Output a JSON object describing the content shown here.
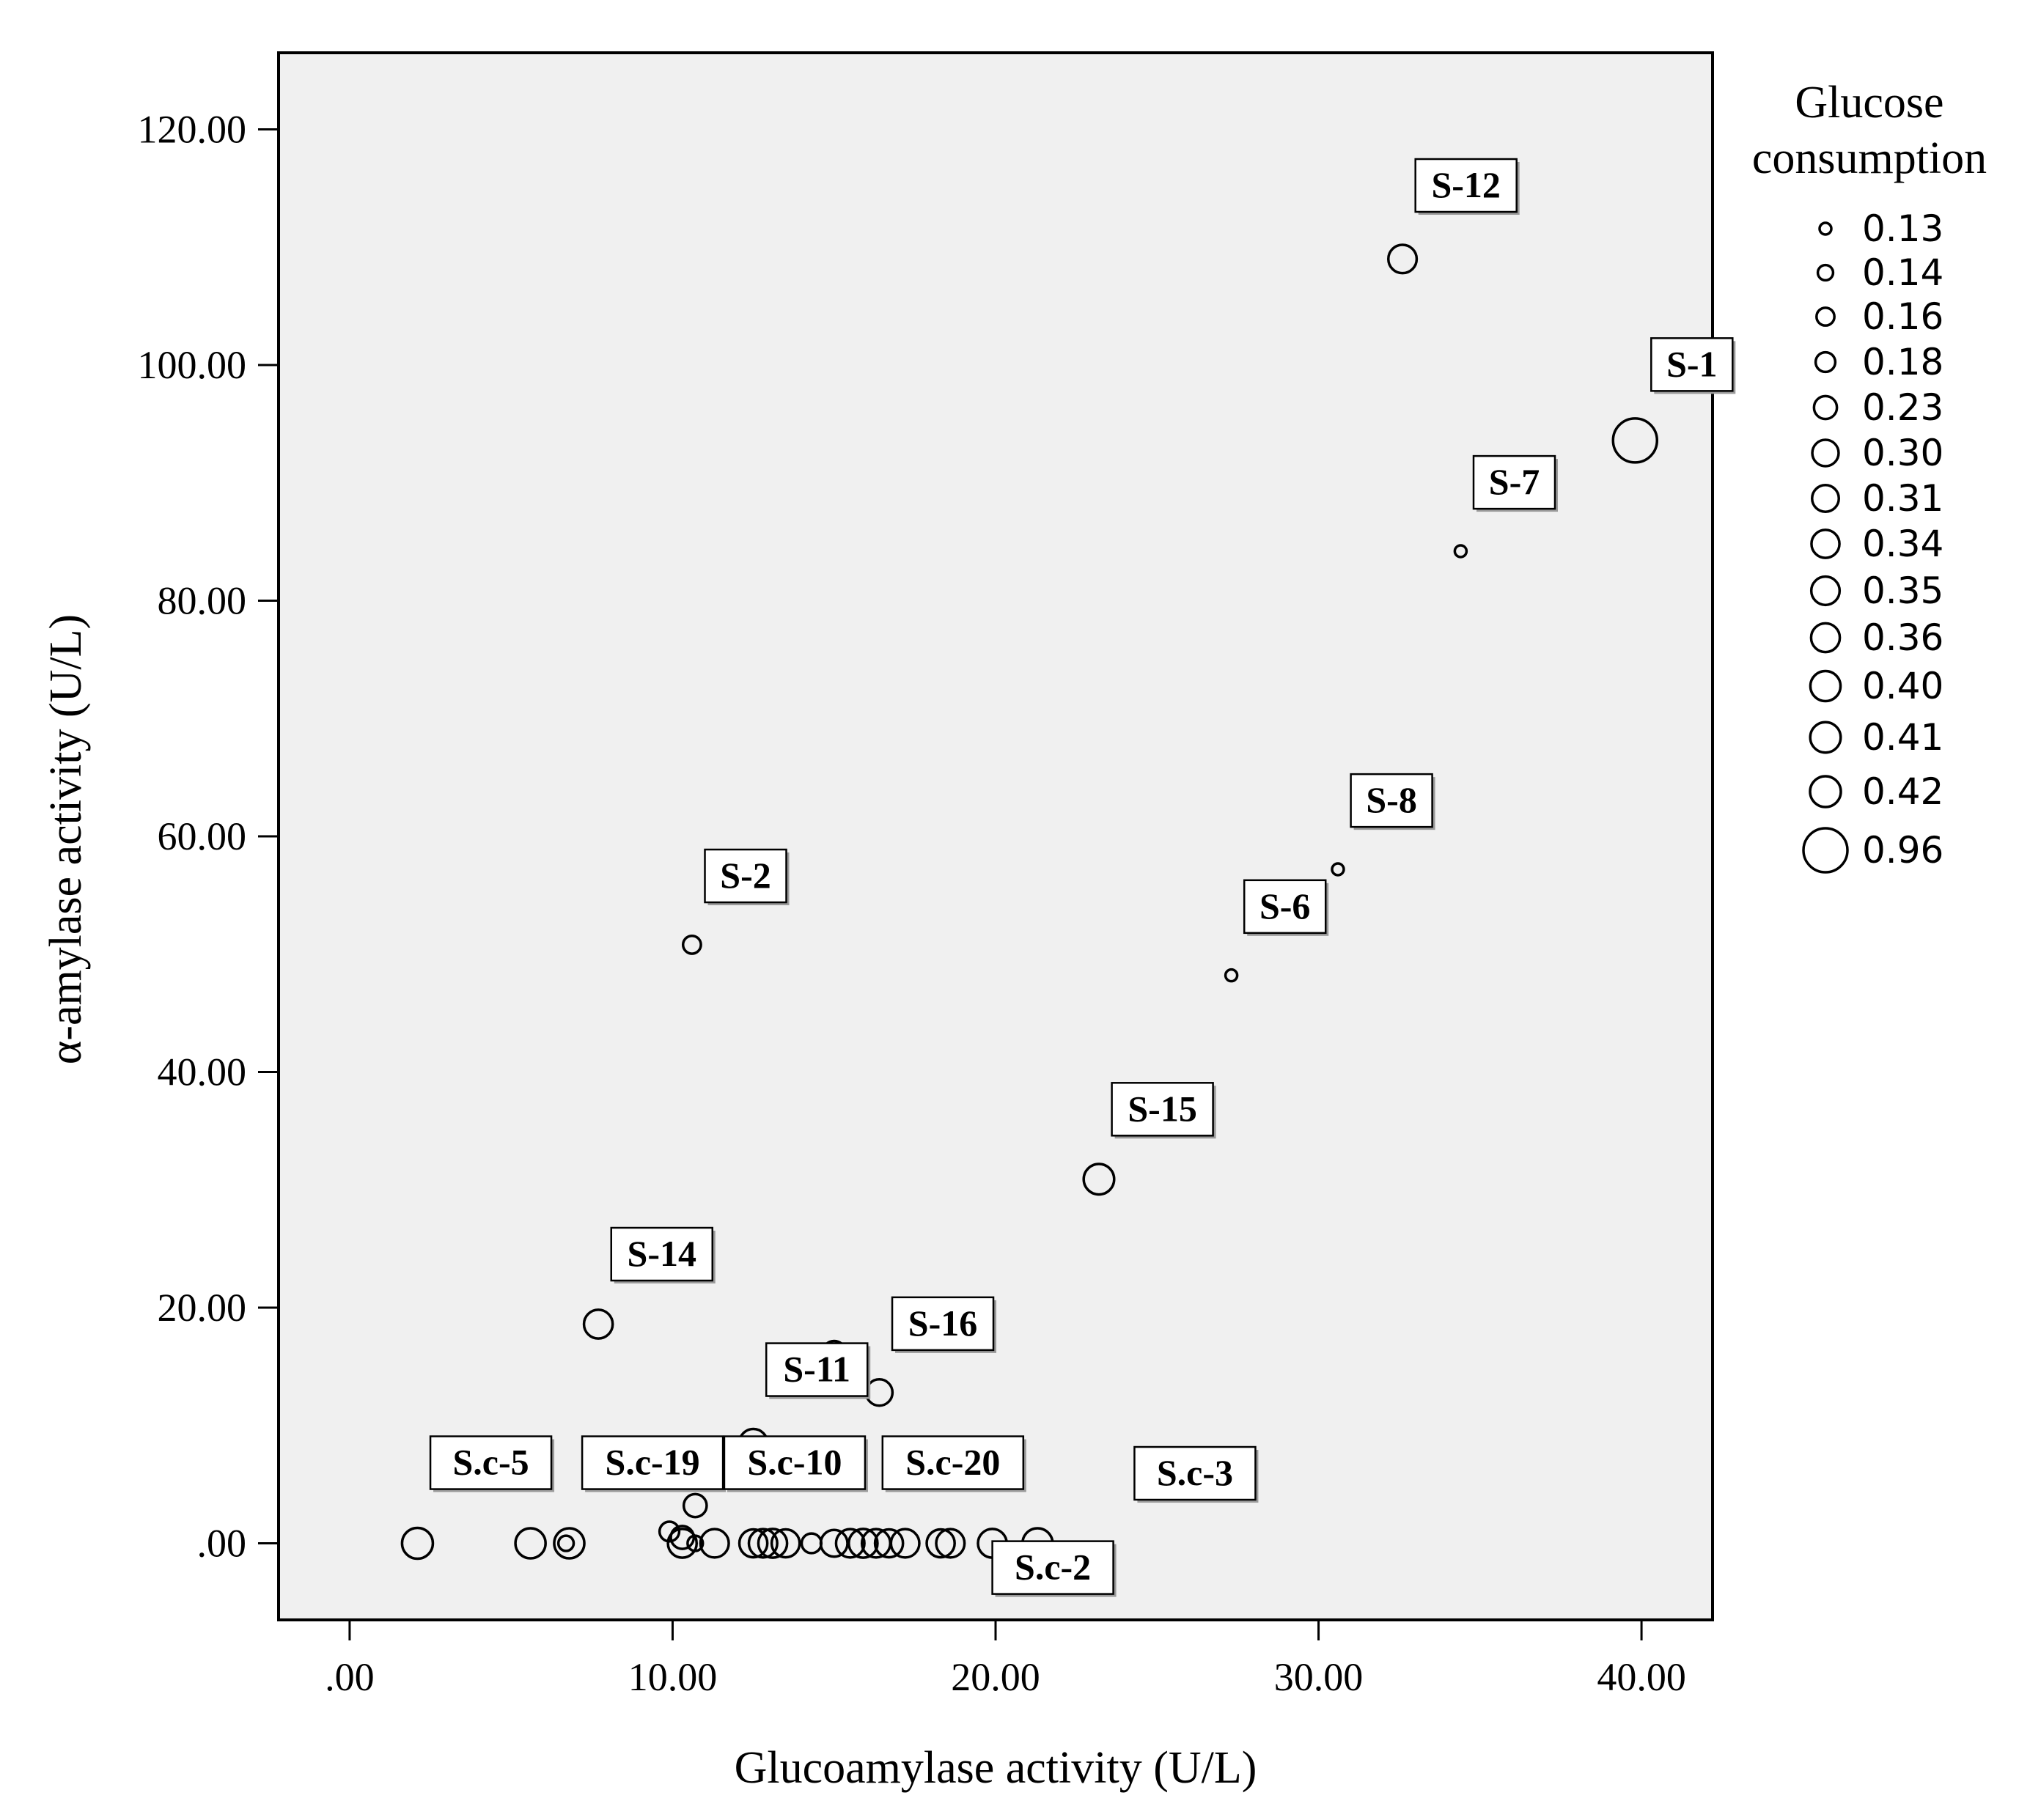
{
  "chart_data": {
    "type": "scatter",
    "title": "",
    "xlabel": "Glucoamylase activity (U/L)",
    "ylabel": "α-amylase activity (U/L)",
    "xlim": [
      -2.2,
      42.2
    ],
    "ylim": [
      -6.5,
      126.5
    ],
    "x_ticks": [
      0,
      10,
      20,
      30,
      40
    ],
    "x_tick_labels": [
      ".00",
      "10.00",
      "20.00",
      "30.00",
      "40.00"
    ],
    "y_ticks": [
      0,
      20,
      40,
      60,
      80,
      100,
      120
    ],
    "y_tick_labels": [
      ".00",
      "20.00",
      "40.00",
      "60.00",
      "80.00",
      "100.00",
      "120.00"
    ],
    "size_variable": "Glucose consumption",
    "legend": {
      "title_lines": [
        "Glucose",
        "consumption"
      ],
      "entries": [
        {
          "label": "0.13",
          "value": 0.13
        },
        {
          "label": "0.14",
          "value": 0.14
        },
        {
          "label": "0.16",
          "value": 0.16
        },
        {
          "label": "0.18",
          "value": 0.18
        },
        {
          "label": "0.23",
          "value": 0.23
        },
        {
          "label": "0.30",
          "value": 0.3
        },
        {
          "label": "0.31",
          "value": 0.31
        },
        {
          "label": "0.34",
          "value": 0.34
        },
        {
          "label": "0.35",
          "value": 0.35
        },
        {
          "label": "0.36",
          "value": 0.36
        },
        {
          "label": "0.40",
          "value": 0.4
        },
        {
          "label": "0.41",
          "value": 0.41
        },
        {
          "label": "0.42",
          "value": 0.42
        },
        {
          "label": "0.96",
          "value": 0.96
        }
      ]
    },
    "points": [
      {
        "label": "S-12",
        "x": 32.6,
        "y": 109.0,
        "size": 0.35
      },
      {
        "label": "S-1",
        "x": 39.8,
        "y": 93.6,
        "size": 0.96
      },
      {
        "label": "S-7",
        "x": 34.4,
        "y": 84.2,
        "size": 0.13
      },
      {
        "label": "S-8",
        "x": 30.6,
        "y": 57.2,
        "size": 0.13
      },
      {
        "label": "S-6",
        "x": 27.3,
        "y": 48.2,
        "size": 0.13
      },
      {
        "label": "S-2",
        "x": 10.6,
        "y": 50.8,
        "size": 0.16
      },
      {
        "label": "S-15",
        "x": 23.2,
        "y": 30.9,
        "size": 0.41
      },
      {
        "label": "S-14",
        "x": 7.7,
        "y": 18.6,
        "size": 0.36
      },
      {
        "label": "",
        "x": 15.0,
        "y": 16.2,
        "size": 0.23
      },
      {
        "label": "S-16",
        "x": 16.4,
        "y": 12.8,
        "size": 0.3
      },
      {
        "label": "S-11",
        "x": 12.5,
        "y": 8.5,
        "size": 0.35
      },
      {
        "label": "",
        "x": 10.7,
        "y": 3.2,
        "size": 0.23
      },
      {
        "label": "",
        "x": 9.9,
        "y": 1.0,
        "size": 0.18
      },
      {
        "label": "",
        "x": 10.3,
        "y": 0.5,
        "size": 0.23
      },
      {
        "label": "S.c-5",
        "x": 2.1,
        "y": 0.0,
        "size": 0.42
      },
      {
        "label": "",
        "x": 5.6,
        "y": 0.0,
        "size": 0.4
      },
      {
        "label": "S.c-19",
        "x": 6.8,
        "y": 0.0,
        "size": 0.4
      },
      {
        "label": "",
        "x": 6.7,
        "y": 0.0,
        "size": 0.14
      },
      {
        "label": "",
        "x": 10.3,
        "y": 0.0,
        "size": 0.36
      },
      {
        "label": "",
        "x": 10.7,
        "y": 0.0,
        "size": 0.14
      },
      {
        "label": "S.c-10",
        "x": 11.3,
        "y": 0.0,
        "size": 0.35
      },
      {
        "label": "",
        "x": 12.5,
        "y": 0.0,
        "size": 0.34
      },
      {
        "label": "",
        "x": 12.8,
        "y": 0.0,
        "size": 0.35
      },
      {
        "label": "",
        "x": 13.1,
        "y": 0.0,
        "size": 0.36
      },
      {
        "label": "",
        "x": 13.5,
        "y": 0.0,
        "size": 0.34
      },
      {
        "label": "",
        "x": 14.3,
        "y": 0.0,
        "size": 0.18
      },
      {
        "label": "",
        "x": 15.0,
        "y": 0.0,
        "size": 0.31
      },
      {
        "label": "",
        "x": 15.5,
        "y": 0.0,
        "size": 0.35
      },
      {
        "label": "",
        "x": 15.9,
        "y": 0.0,
        "size": 0.36
      },
      {
        "label": "S.c-20",
        "x": 16.3,
        "y": 0.0,
        "size": 0.35
      },
      {
        "label": "",
        "x": 16.7,
        "y": 0.0,
        "size": 0.34
      },
      {
        "label": "",
        "x": 17.2,
        "y": 0.0,
        "size": 0.35
      },
      {
        "label": "",
        "x": 18.3,
        "y": 0.0,
        "size": 0.34
      },
      {
        "label": "S.c-2",
        "x": 18.6,
        "y": 0.0,
        "size": 0.35
      },
      {
        "label": "",
        "x": 19.9,
        "y": 0.0,
        "size": 0.36
      },
      {
        "label": "S.c-3",
        "x": 21.3,
        "y": 0.0,
        "size": 0.4
      }
    ],
    "label_boxes": [
      {
        "label": "S-12",
        "x": 32.6,
        "y": 109.0,
        "lx": 33.0,
        "ly": 113.0
      },
      {
        "label": "S-1",
        "x": 39.8,
        "y": 93.6,
        "lx": 40.3,
        "ly": 97.8
      },
      {
        "label": "S-7",
        "x": 34.4,
        "y": 84.2,
        "lx": 34.8,
        "ly": 87.8
      },
      {
        "label": "S-8",
        "x": 30.6,
        "y": 57.2,
        "lx": 31.0,
        "ly": 60.8
      },
      {
        "label": "S-6",
        "x": 27.3,
        "y": 48.2,
        "lx": 27.7,
        "ly": 51.8
      },
      {
        "label": "S-2",
        "x": 10.6,
        "y": 50.8,
        "lx": 11.0,
        "ly": 54.4
      },
      {
        "label": "S-15",
        "x": 23.2,
        "y": 30.9,
        "lx": 23.6,
        "ly": 34.6
      },
      {
        "label": "S-14",
        "x": 7.7,
        "y": 18.6,
        "lx": 8.1,
        "ly": 22.3
      },
      {
        "label": "S-16",
        "x": 16.4,
        "y": 12.8,
        "lx": 16.8,
        "ly": 16.4
      },
      {
        "label": "S-11",
        "x": 12.5,
        "y": 8.5,
        "lx": 12.9,
        "ly": 12.5
      },
      {
        "label": "S.c-5",
        "x": 2.1,
        "y": 0.0,
        "lx": 2.5,
        "ly": 4.6
      },
      {
        "label": "S.c-19",
        "x": 6.8,
        "y": 0.0,
        "lx": 7.2,
        "ly": 4.6
      },
      {
        "label": "S.c-10",
        "x": 11.3,
        "y": 0.0,
        "lx": 11.6,
        "ly": 4.6
      },
      {
        "label": "S.c-20",
        "x": 16.3,
        "y": 0.0,
        "lx": 16.5,
        "ly": 4.6
      },
      {
        "label": "S.c-3",
        "x": 21.3,
        "y": 0.0,
        "lx": 24.3,
        "ly": 3.7
      },
      {
        "label": "S.c-2",
        "x": 18.6,
        "y": 0.0,
        "lx": 19.9,
        "ly": -4.3
      }
    ]
  }
}
